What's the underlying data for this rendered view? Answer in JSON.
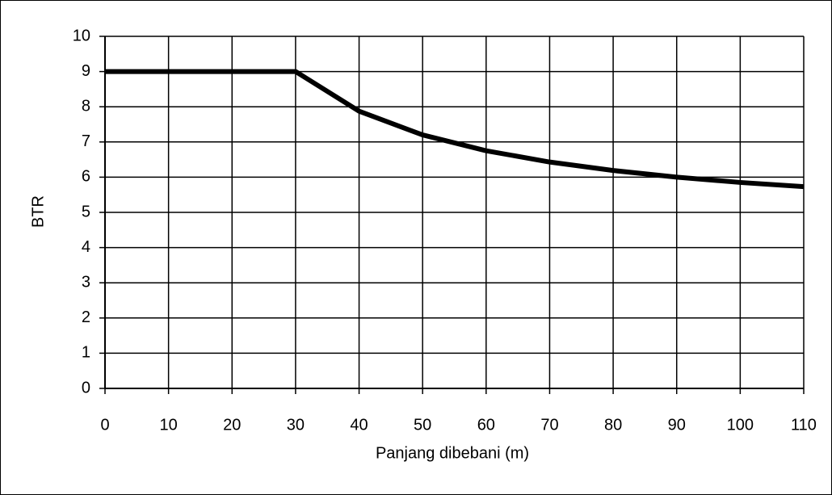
{
  "chart_data": {
    "type": "line",
    "x_label": "Panjang dibebani (m)",
    "y_label": "BTR",
    "x": [
      0,
      10,
      20,
      30,
      40,
      50,
      60,
      70,
      80,
      90,
      100,
      110
    ],
    "series": [
      {
        "color": "#000000",
        "values": [
          9,
          9,
          9,
          9,
          7.875,
          7.2,
          6.75,
          6.43,
          6.19,
          6.0,
          5.85,
          5.73
        ]
      }
    ],
    "xlim": [
      0,
      110
    ],
    "xticks": [
      0,
      10,
      20,
      30,
      40,
      50,
      60,
      70,
      80,
      90,
      100,
      110
    ],
    "ylim": [
      0,
      10
    ],
    "yticks": [
      0,
      1,
      2,
      3,
      4,
      5,
      6,
      7,
      8,
      9,
      10
    ],
    "grid": true
  }
}
